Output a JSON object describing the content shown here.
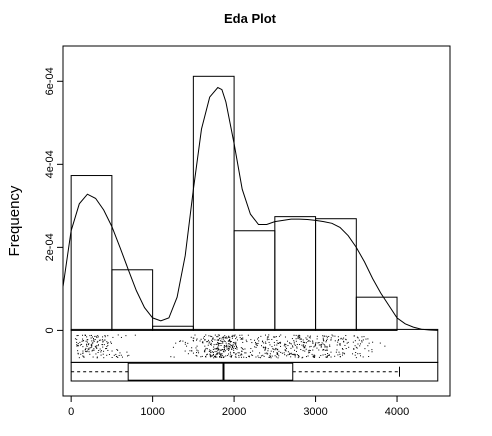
{
  "chart_data": {
    "type": "histogram",
    "title": "Eda Plot",
    "ylabel": "Frequency",
    "xlabel": "",
    "xlim": [
      -100,
      4650
    ],
    "ylim": [
      -0.000158,
      0.000685
    ],
    "x_ticks": [
      0,
      1000,
      2000,
      3000,
      4000
    ],
    "x_tick_labels": [
      "0",
      "1000",
      "2000",
      "3000",
      "4000"
    ],
    "y_ticks": [
      0,
      0.0002,
      0.0004,
      0.0006
    ],
    "y_tick_labels": [
      "0",
      "2e-04",
      "4e-04",
      "6e-04"
    ],
    "histogram": {
      "bin_edges": [
        0,
        500,
        1000,
        1500,
        2000,
        2500,
        3000,
        3500,
        4000
      ],
      "densities": [
        0.000373,
        0.000146,
        1e-05,
        0.000612,
        0.00024,
        0.000274,
        0.000269,
        8e-05
      ]
    },
    "density_curve": {
      "x": [
        -100,
        0,
        100,
        200,
        300,
        400,
        500,
        600,
        700,
        800,
        900,
        1000,
        1100,
        1200,
        1300,
        1400,
        1500,
        1600,
        1700,
        1800,
        1850,
        1900,
        2000,
        2100,
        2200,
        2300,
        2400,
        2500,
        2600,
        2700,
        2800,
        2900,
        3000,
        3100,
        3200,
        3300,
        3400,
        3500,
        3600,
        3700,
        3800,
        3900,
        4000,
        4100,
        4200,
        4300,
        4400,
        4500
      ],
      "y": [
        0.000105,
        0.00024,
        0.000305,
        0.000328,
        0.000318,
        0.00029,
        0.00025,
        0.0002,
        0.000147,
        9.6e-05,
        5.5e-05,
        3e-05,
        2.3e-05,
        3e-05,
        8e-05,
        0.00018,
        0.00034,
        0.000485,
        0.000562,
        0.000585,
        0.00058,
        0.00055,
        0.00045,
        0.00034,
        0.00028,
        0.000255,
        0.000255,
        0.000262,
        0.000265,
        0.000268,
        0.000268,
        0.000267,
        0.000265,
        0.000262,
        0.000258,
        0.000248,
        0.000228,
        0.0002,
        0.000165,
        0.000125,
        9e-05,
        6e-05,
        3e-05,
        1.6e-05,
        8e-06,
        3e-06,
        1e-06,
        0.0
      ],
      "note_start_x": -100
    },
    "boxplot": {
      "whisker_low": 0,
      "q1": 700,
      "median": 1870,
      "q3": 2720,
      "whisker_high": 4030,
      "band_x_range": [
        0,
        4500
      ]
    },
    "rug": {
      "clusters": [
        {
          "center": 200,
          "spread": 130,
          "count": 120
        },
        {
          "center": 500,
          "spread": 120,
          "count": 40
        },
        {
          "center": 1850,
          "spread": 140,
          "count": 220
        },
        {
          "center": 2300,
          "spread": 260,
          "count": 140
        },
        {
          "center": 2900,
          "spread": 300,
          "count": 180
        },
        {
          "center": 3300,
          "spread": 220,
          "count": 90
        },
        {
          "center": 1500,
          "spread": 120,
          "count": 40
        }
      ],
      "x_range": [
        0,
        4500
      ]
    }
  }
}
